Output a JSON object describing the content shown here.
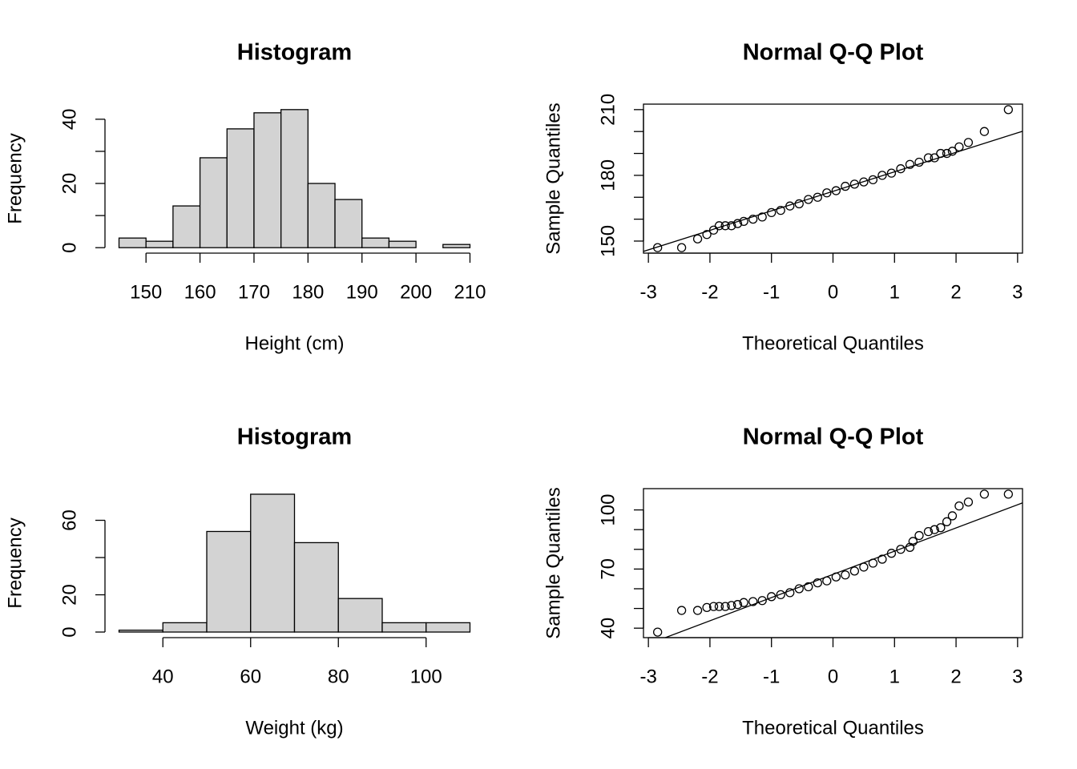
{
  "chart_data": [
    {
      "type": "histogram",
      "title": "Histogram",
      "x_label": "Height (cm)",
      "y_label": "Frequency",
      "bins": [
        145,
        150,
        155,
        160,
        165,
        170,
        175,
        180,
        185,
        190,
        195,
        200,
        205,
        210
      ],
      "values": [
        3,
        2,
        13,
        28,
        37,
        42,
        43,
        20,
        15,
        3,
        2,
        0,
        1
      ],
      "color": "#d3d3d3",
      "xlim": [
        142.4,
        212.6
      ],
      "ylim": [
        -1.7,
        44.7
      ],
      "xticks": [
        150,
        160,
        170,
        180,
        190,
        200,
        210
      ],
      "yticks": [
        0,
        20,
        40
      ],
      "yminorticks": [
        10,
        30
      ]
    },
    {
      "type": "qq",
      "title": "Normal Q-Q Plot",
      "x_label": "Theoretical Quantiles",
      "y_label": "Sample Quantiles",
      "x": [
        -2.85,
        -2.46,
        -2.2,
        -2.05,
        -1.94,
        -1.85,
        -1.75,
        -1.65,
        -1.55,
        -1.45,
        -1.3,
        -1.15,
        -1.0,
        -0.85,
        -0.7,
        -0.55,
        -0.4,
        -0.25,
        -0.1,
        0.05,
        0.2,
        0.35,
        0.5,
        0.65,
        0.8,
        0.95,
        1.1,
        1.25,
        1.4,
        1.55,
        1.65,
        1.75,
        1.85,
        1.94,
        2.05,
        2.2,
        2.46,
        2.85
      ],
      "values": [
        147,
        147,
        151,
        153,
        155,
        157,
        157,
        157,
        158,
        159,
        160,
        161,
        163,
        164,
        166,
        167,
        169,
        170,
        172,
        173,
        175,
        176,
        177,
        178,
        180,
        181,
        183,
        185,
        186,
        188,
        188,
        190,
        190,
        191,
        193,
        195,
        200,
        210
      ],
      "qqline": {
        "intercept": 172.7,
        "slope": 8.9
      },
      "color": "#000000",
      "xlim": [
        -3.08,
        3.08
      ],
      "ylim": [
        144.5,
        212.5
      ],
      "xticks": [
        -3,
        -2,
        -1,
        0,
        1,
        2,
        3
      ],
      "yticks": [
        150,
        180,
        210
      ],
      "yminorticks": [
        160,
        170,
        190,
        200
      ]
    },
    {
      "type": "histogram",
      "title": "Histogram",
      "x_label": "Weight (kg)",
      "y_label": "Frequency",
      "bins": [
        30,
        40,
        50,
        60,
        70,
        80,
        90,
        100,
        110
      ],
      "values": [
        1,
        5,
        54,
        74,
        48,
        18,
        5,
        5
      ],
      "color": "#d3d3d3",
      "xlim": [
        26.8,
        113.2
      ],
      "ylim": [
        -3,
        77
      ],
      "xticks": [
        40,
        60,
        80,
        100
      ],
      "yticks": [
        0,
        20,
        60
      ],
      "yminorticks": [
        40
      ]
    },
    {
      "type": "qq",
      "title": "Normal Q-Q Plot",
      "x_label": "Theoretical Quantiles",
      "y_label": "Sample Quantiles",
      "x": [
        -2.85,
        -2.46,
        -2.2,
        -2.05,
        -1.94,
        -1.85,
        -1.75,
        -1.65,
        -1.55,
        -1.45,
        -1.3,
        -1.15,
        -1.0,
        -0.85,
        -0.7,
        -0.55,
        -0.4,
        -0.25,
        -0.1,
        0.05,
        0.2,
        0.35,
        0.5,
        0.65,
        0.8,
        0.95,
        1.1,
        1.25,
        1.3,
        1.4,
        1.55,
        1.65,
        1.75,
        1.85,
        1.94,
        2.05,
        2.2,
        2.46,
        2.85
      ],
      "values": [
        38,
        49,
        49,
        50.5,
        51,
        51,
        51,
        51.5,
        52,
        53,
        53.5,
        54,
        56,
        57,
        58,
        60,
        61,
        63,
        64,
        66,
        67,
        69,
        71,
        73,
        75,
        78,
        80,
        81,
        84,
        87,
        89,
        90,
        91,
        94,
        97,
        102,
        104,
        108,
        108
      ],
      "qqline": {
        "intercept": 67.3,
        "slope": 11.78
      },
      "color": "#000000",
      "xlim": [
        -3.08,
        3.08
      ],
      "ylim": [
        35.2,
        110.8
      ],
      "xticks": [
        -3,
        -2,
        -1,
        0,
        1,
        2,
        3
      ],
      "yticks": [
        40,
        70,
        100
      ],
      "yminorticks": [
        50,
        60,
        80,
        90
      ]
    }
  ]
}
